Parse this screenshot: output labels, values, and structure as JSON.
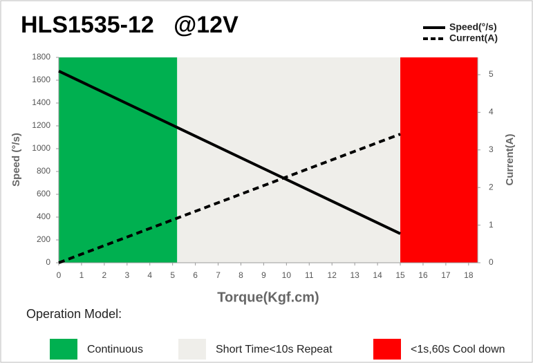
{
  "chart_data": {
    "type": "line",
    "title": "HLS1535-12   @12V",
    "xlabel": "Torque(Kgf.cm)",
    "ylabel": "Speed (°/s)",
    "y2label": "Current(A)",
    "xlim": [
      0,
      18.4
    ],
    "xticks": [
      0,
      1,
      2,
      3,
      4,
      5,
      6,
      7,
      8,
      9,
      10,
      11,
      12,
      13,
      14,
      15,
      16,
      17,
      18
    ],
    "ylim": [
      0,
      1800
    ],
    "yticks": [
      0,
      200,
      400,
      600,
      800,
      1000,
      1200,
      1400,
      1600,
      1800
    ],
    "y2lim": [
      0,
      5.46
    ],
    "y2ticks": [
      0,
      1,
      2,
      3,
      4,
      5
    ],
    "series": [
      {
        "name": "Speed(°/s)",
        "color": "#000000",
        "style": "solid",
        "x": [
          0,
          15
        ],
        "values": [
          1680,
          255
        ]
      },
      {
        "name": "Current(A)",
        "color": "#000000",
        "style": "dashed",
        "axis": "y2",
        "x": [
          0,
          15
        ],
        "values": [
          0,
          3.42
        ]
      }
    ],
    "zones_title": "Operation Model:",
    "zones": [
      {
        "name": "Continuous",
        "color": "#00b050",
        "from": 0,
        "to": 5.2
      },
      {
        "name": "Short Time<10s Repeat",
        "color": "#efeeea",
        "from": 5.2,
        "to": 15
      },
      {
        "name": "<1s,60s Cool down",
        "color": "#ff0000",
        "from": 15,
        "to": 18.4
      }
    ],
    "legend": "top-right"
  }
}
